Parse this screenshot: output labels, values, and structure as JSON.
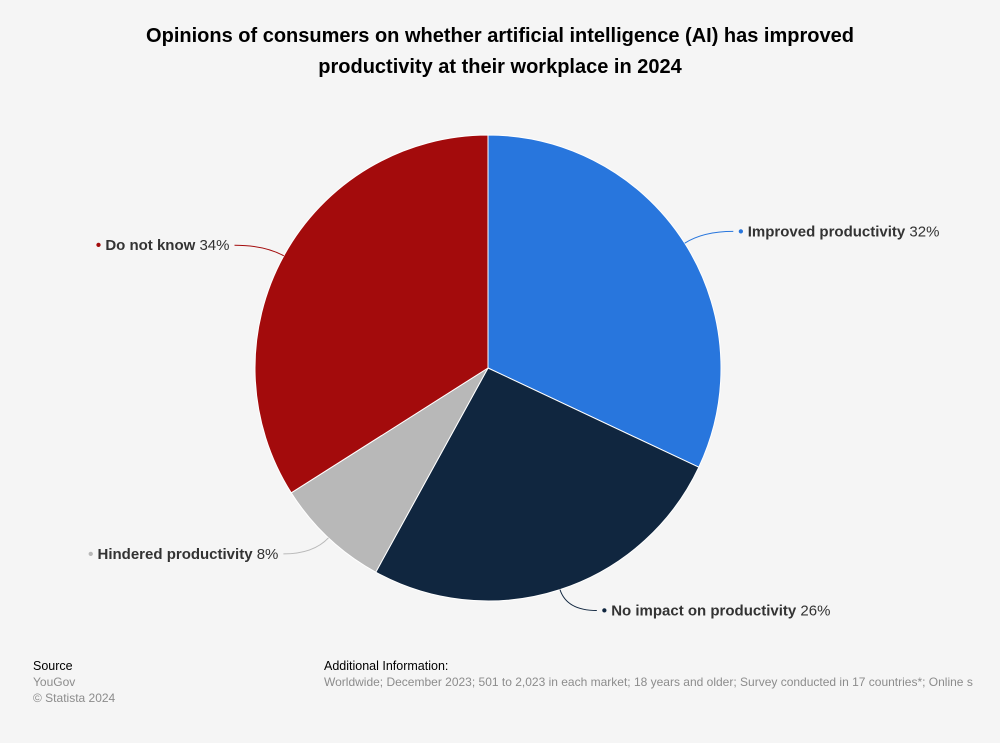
{
  "chart_data": {
    "type": "pie",
    "title_lines": [
      "Opinions of consumers on whether artificial intelligence (AI) has improved",
      "productivity at their workplace in 2024"
    ],
    "slices": [
      {
        "label": "Improved productivity",
        "value": 32,
        "value_text": "32%",
        "color": "#2876dd"
      },
      {
        "label": "No impact on productivity",
        "value": 26,
        "value_text": "26%",
        "color": "#10263f"
      },
      {
        "label": "Hindered productivity",
        "value": 8,
        "value_text": "8%",
        "color": "#b8b8b8"
      },
      {
        "label": "Do not know",
        "value": 34,
        "value_text": "34%",
        "color": "#a30b0c"
      }
    ],
    "start_angle_deg": 0,
    "direction": "clockwise",
    "label_style": "outside-with-connectors"
  },
  "footer": {
    "source_heading": "Source",
    "source_name": "YouGov",
    "copyright": "© Statista 2024",
    "info_heading": "Additional Information:",
    "info_text": "Worldwide; December 2023; 501 to 2,023 in each market; 18 years and older; Survey conducted in 17 countries*; Online s"
  }
}
